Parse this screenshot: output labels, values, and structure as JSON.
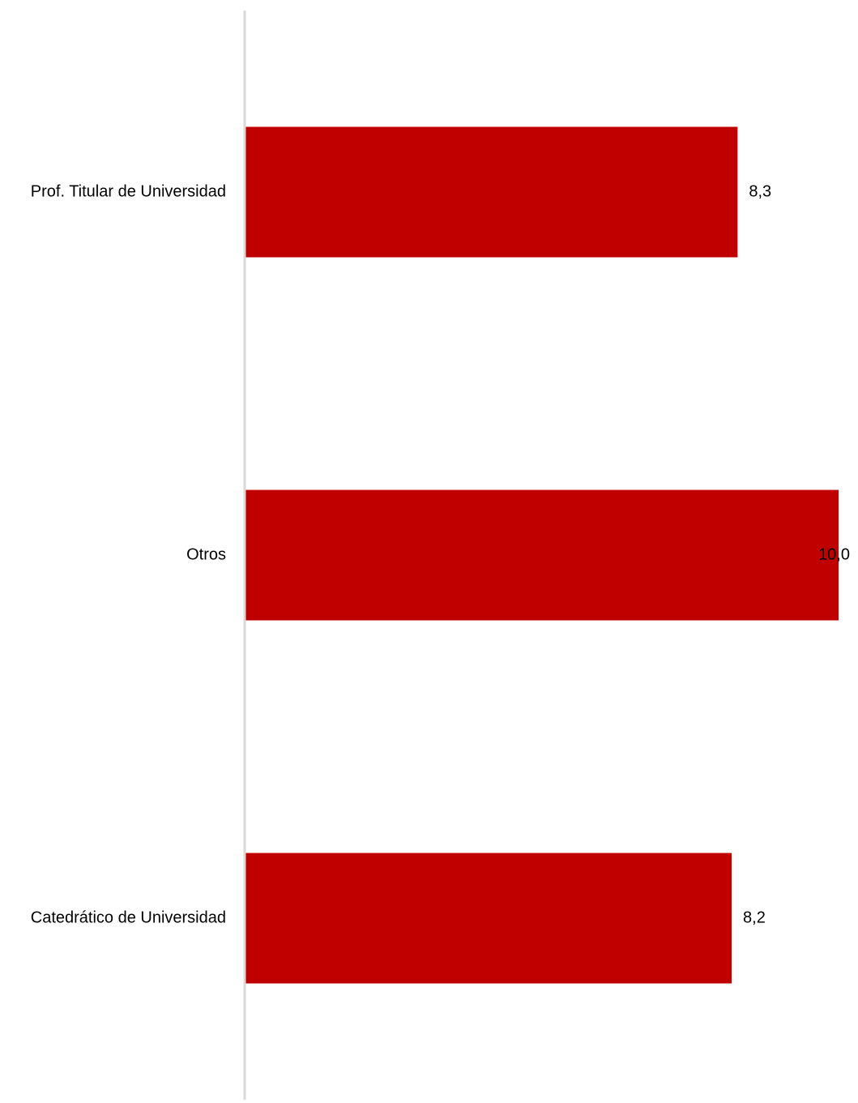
{
  "chart_data": {
    "type": "bar",
    "orientation": "horizontal",
    "categories": [
      "Prof. Titular de Universidad",
      "Otros",
      "Catedrático de Universidad"
    ],
    "values": [
      8.3,
      10.0,
      8.2
    ],
    "value_labels": [
      "8,3",
      "10,0",
      "8,2"
    ],
    "title": "",
    "xlabel": "",
    "ylabel": "",
    "xlim": [
      0,
      10
    ],
    "grid": false,
    "legend": "none",
    "colors": {
      "bar": "#c00000",
      "axis": "#d9d9d9",
      "text": "#000000"
    }
  }
}
